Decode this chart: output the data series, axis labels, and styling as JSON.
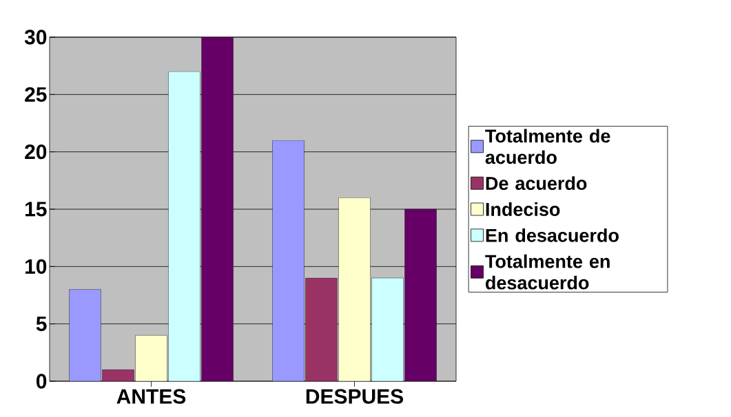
{
  "chart_data": {
    "type": "bar",
    "categories": [
      "ANTES",
      "DESPUES"
    ],
    "series": [
      {
        "name": "Totalmente de acuerdo",
        "color": "#9999ff",
        "values": [
          8,
          21
        ]
      },
      {
        "name": "De  acuerdo",
        "color": "#993366",
        "values": [
          1,
          9
        ]
      },
      {
        "name": "Indeciso",
        "color": "#ffffcc",
        "values": [
          4,
          16
        ]
      },
      {
        "name": "En  desacuerdo",
        "color": "#ccffff",
        "values": [
          27,
          9
        ]
      },
      {
        "name": "Totalmente en desacuerdo",
        "color": "#660066",
        "values": [
          30,
          15
        ]
      }
    ],
    "ylim": [
      0,
      30
    ],
    "yticks": [
      0,
      5,
      10,
      15,
      20,
      25,
      30
    ],
    "grid": "y",
    "legend": "right"
  }
}
